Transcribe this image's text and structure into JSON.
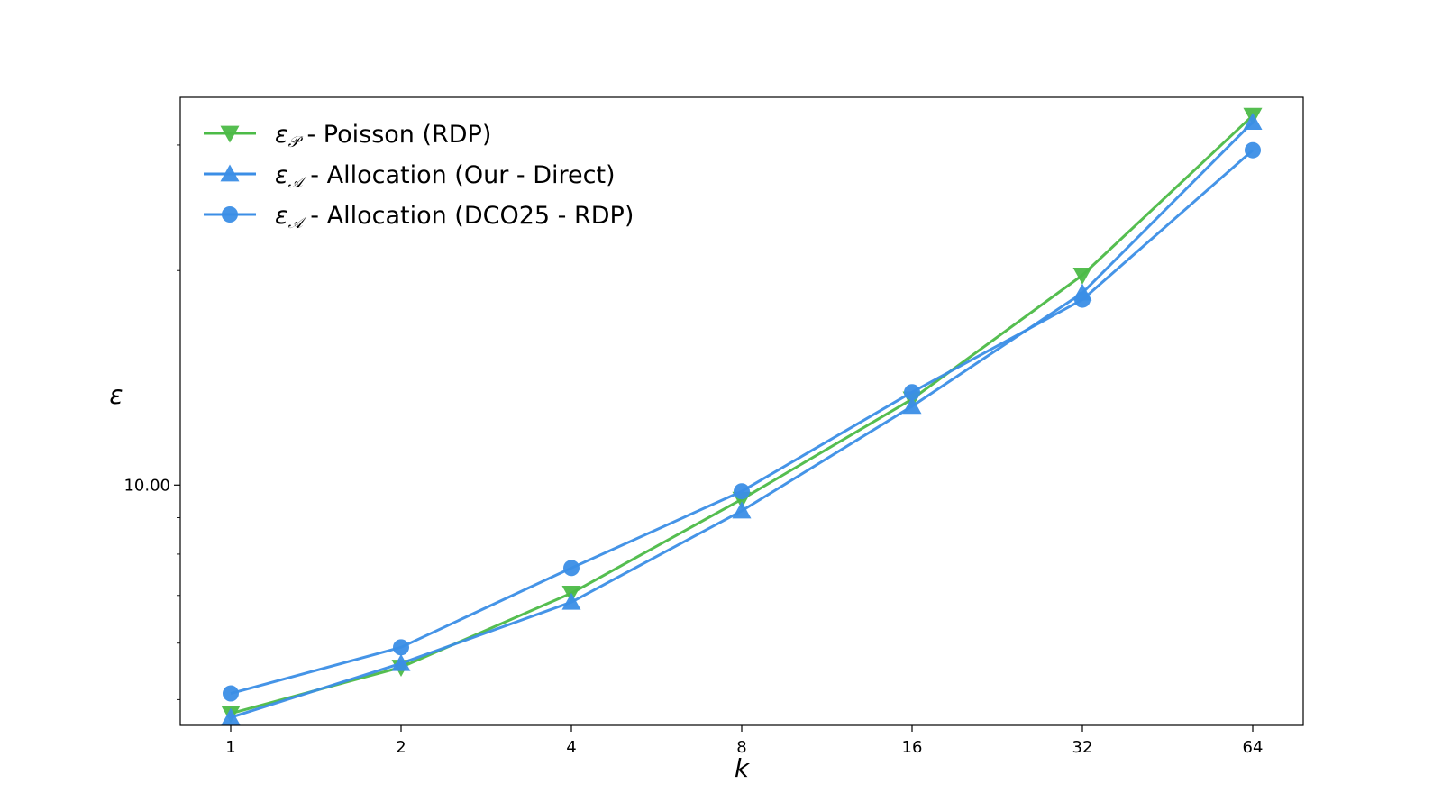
{
  "chart_data": {
    "type": "line",
    "title": "",
    "xlabel": "k",
    "ylabel": "ε",
    "x_scale": "log2",
    "y_scale": "log",
    "x": [
      1,
      2,
      4,
      8,
      16,
      32,
      64
    ],
    "x_tick_labels": [
      "1",
      "2",
      "4",
      "8",
      "16",
      "32",
      "64"
    ],
    "y_tick_labels": [
      "10.00"
    ],
    "ylim": [
      4.6,
      35.0
    ],
    "grid": false,
    "legend_position": "top-left",
    "series": [
      {
        "name": "ε𝒫 - Poisson (RDP)",
        "legend_symbol": "ε",
        "legend_sub": "𝒫",
        "legend_text": " - Poisson (RDP)",
        "marker": "triangle-down",
        "color": "#4cbb47",
        "values": [
          4.78,
          5.55,
          7.05,
          9.55,
          13.2,
          19.7,
          33.0
        ]
      },
      {
        "name": "ε𝒜 - Allocation (Our - Direct)",
        "legend_symbol": "ε",
        "legend_sub": "𝒜",
        "legend_text": " - Allocation (Our - Direct)",
        "marker": "triangle-up",
        "color": "#3b8ee6",
        "values": [
          4.72,
          5.62,
          6.85,
          9.2,
          12.9,
          18.6,
          32.3
        ]
      },
      {
        "name": "ε𝒜 - Allocation (DCO25 - RDP)",
        "legend_symbol": "ε",
        "legend_sub": "𝒜",
        "legend_text": " - Allocation (DCO25 - RDP)",
        "marker": "circle",
        "color": "#3b8ee6",
        "values": [
          5.1,
          5.92,
          7.65,
          9.8,
          13.5,
          18.2,
          29.5
        ]
      }
    ]
  }
}
